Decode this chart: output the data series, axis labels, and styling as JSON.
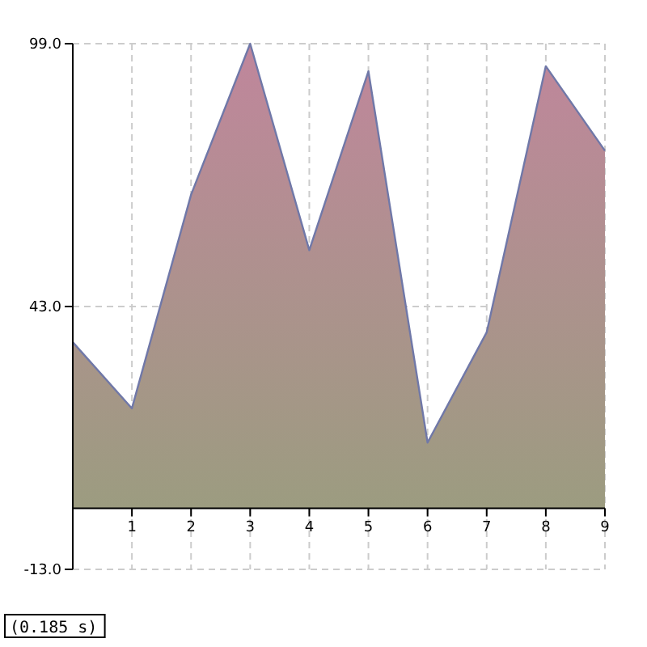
{
  "chart_data": {
    "type": "area",
    "x": [
      0,
      1,
      2,
      3,
      4,
      5,
      6,
      7,
      8,
      9
    ],
    "series": [
      {
        "color": "#c0869c",
        "values": [
          35.4,
          21.3,
          66.8,
          99,
          55,
          93.1,
          14,
          37.5,
          94.2,
          76.2
        ]
      }
    ],
    "xlim": [
      0,
      9
    ],
    "xticks": [
      1,
      2,
      3,
      4,
      5,
      6,
      7,
      8,
      9
    ],
    "ylim": [
      -13,
      99
    ],
    "yticks": [
      {
        "value": -13,
        "label": "-13.0"
      },
      {
        "value": 43,
        "label": "43.0"
      },
      {
        "value": 99,
        "label": "99.0"
      }
    ],
    "grid": true,
    "annotations": [
      "(0.185 s)"
    ]
  }
}
